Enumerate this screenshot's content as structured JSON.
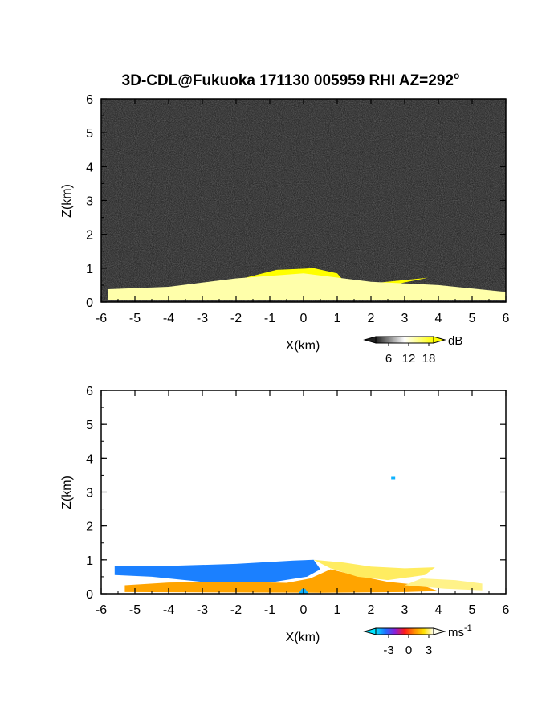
{
  "chart_data": [
    {
      "type": "heatmap",
      "title": "3D-CDL@Fukuoka 171130 005959 RHI AZ=292",
      "title_superscript": "o",
      "xlabel": "X(km)",
      "ylabel": "Z(km)",
      "xlim": [
        -6,
        6
      ],
      "ylim": [
        0,
        6
      ],
      "xticks": [
        -6,
        -5,
        -4,
        -3,
        -2,
        -1,
        0,
        1,
        2,
        3,
        4,
        5,
        6
      ],
      "yticks": [
        0,
        1,
        2,
        3,
        4,
        5,
        6
      ],
      "colorbar": {
        "unit": "dB",
        "ticks": [
          6,
          12,
          18
        ],
        "colors": [
          "#202020",
          "#ffffff",
          "#ffff00"
        ],
        "background_color": "#1a1a1a",
        "saturated_color": "#ffff00"
      },
      "regions": [
        {
          "name": "strong echo",
          "value": 18,
          "polygon": [
            [
              -3.6,
              0.3
            ],
            [
              -2.0,
              0.65
            ],
            [
              -0.8,
              0.95
            ],
            [
              0.3,
              1.0
            ],
            [
              1.0,
              0.85
            ],
            [
              1.3,
              0.5
            ],
            [
              2.0,
              0.55
            ],
            [
              3.7,
              0.72
            ],
            [
              2.6,
              0.5
            ],
            [
              1.5,
              0.3
            ],
            [
              1.0,
              0.12
            ],
            [
              0.0,
              0.08
            ],
            [
              -1.0,
              0.1
            ],
            [
              -2.5,
              0.12
            ]
          ]
        },
        {
          "name": "weak echo layer",
          "value": 12,
          "polygon": [
            [
              -5.8,
              0.05
            ],
            [
              -5.8,
              0.38
            ],
            [
              -4.0,
              0.45
            ],
            [
              -2.0,
              0.7
            ],
            [
              0.0,
              0.85
            ],
            [
              2.0,
              0.6
            ],
            [
              4.0,
              0.5
            ],
            [
              6.0,
              0.3
            ],
            [
              6.0,
              0.05
            ]
          ]
        }
      ]
    },
    {
      "type": "heatmap",
      "xlabel": "X(km)",
      "ylabel": "Z(km)",
      "xlim": [
        -6,
        6
      ],
      "ylim": [
        0,
        6
      ],
      "xticks": [
        -6,
        -5,
        -4,
        -3,
        -2,
        -1,
        0,
        1,
        2,
        3,
        4,
        5,
        6
      ],
      "yticks": [
        0,
        1,
        2,
        3,
        4,
        5,
        6
      ],
      "colorbar": {
        "unit": "ms",
        "unit_superscript": "-1",
        "ticks": [
          "-3",
          "0",
          "3"
        ],
        "colors": [
          "#00e5ff",
          "#1f6fff",
          "#8a1fd8",
          "#ff1a1a",
          "#ff8c00",
          "#ffe000",
          "#fffff0"
        ]
      },
      "regions": [
        {
          "name": "outflow layer",
          "value": -2.5,
          "polygon": [
            [
              -5.6,
              0.55
            ],
            [
              -5.6,
              0.82
            ],
            [
              -4.0,
              0.82
            ],
            [
              -2.0,
              0.88
            ],
            [
              -0.3,
              0.98
            ],
            [
              0.3,
              1.0
            ],
            [
              0.5,
              0.72
            ],
            [
              0.1,
              0.5
            ],
            [
              -1.0,
              0.33
            ],
            [
              -3.0,
              0.35
            ],
            [
              -4.5,
              0.5
            ]
          ]
        },
        {
          "name": "inflow layer",
          "value": 1.5,
          "polygon": [
            [
              -5.3,
              0.05
            ],
            [
              -5.3,
              0.25
            ],
            [
              -4.0,
              0.33
            ],
            [
              -2.0,
              0.35
            ],
            [
              -0.5,
              0.32
            ],
            [
              0.2,
              0.45
            ],
            [
              0.8,
              0.72
            ],
            [
              1.5,
              0.55
            ],
            [
              2.5,
              0.35
            ],
            [
              3.5,
              0.25
            ],
            [
              4.0,
              0.08
            ],
            [
              3.0,
              0.05
            ],
            [
              0.5,
              0.03
            ]
          ]
        },
        {
          "name": "upper outflow",
          "value": 2.8,
          "polygon": [
            [
              0.3,
              1.0
            ],
            [
              1.2,
              0.92
            ],
            [
              2.0,
              0.8
            ],
            [
              3.0,
              0.75
            ],
            [
              3.9,
              0.78
            ],
            [
              3.6,
              0.55
            ],
            [
              2.5,
              0.4
            ],
            [
              1.6,
              0.5
            ],
            [
              0.8,
              0.75
            ]
          ]
        },
        {
          "name": "far echo",
          "value": 3,
          "polygon": [
            [
              3.5,
              0.45
            ],
            [
              4.5,
              0.4
            ],
            [
              5.3,
              0.3
            ],
            [
              5.3,
              0.1
            ],
            [
              4.2,
              0.15
            ],
            [
              3.0,
              0.25
            ]
          ]
        },
        {
          "name": "isolated pixel",
          "value": -3,
          "polygon": [
            [
              2.6,
              3.45
            ],
            [
              2.72,
              3.45
            ],
            [
              2.72,
              3.38
            ],
            [
              2.6,
              3.38
            ]
          ]
        },
        {
          "name": "near-site echo",
          "value": -3,
          "polygon": [
            [
              -0.15,
              0.0
            ],
            [
              -0.05,
              0.15
            ],
            [
              0.05,
              0.15
            ],
            [
              0.15,
              0.0
            ]
          ]
        }
      ]
    }
  ]
}
